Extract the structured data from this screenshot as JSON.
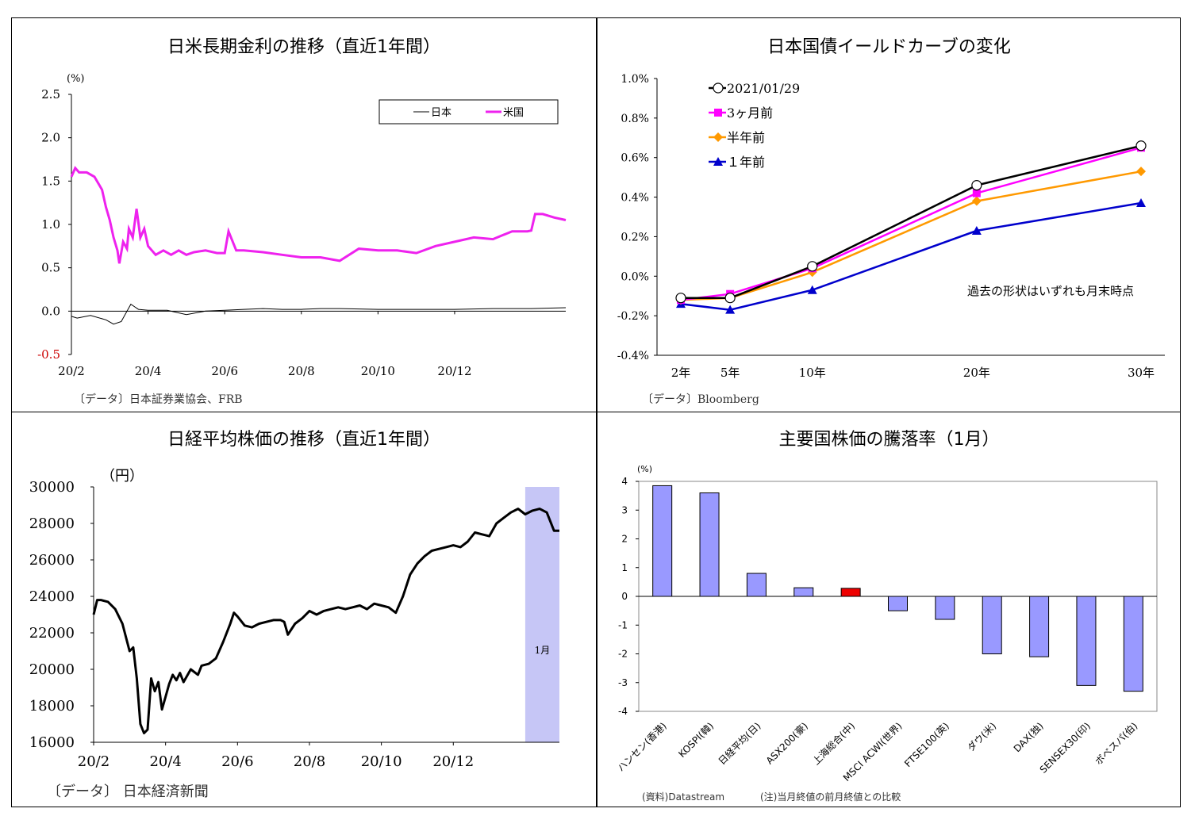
{
  "panels": {
    "p1": {
      "title": "日米長期金利の推移（直近1年間）",
      "source": "〔データ〕日本証券業協会、FRB"
    },
    "p2": {
      "title": "日本国債イールドカーブの変化",
      "source": "〔データ〕Bloomberg"
    },
    "p3": {
      "title": "日経平均株価の推移（直近1年間）",
      "source": "〔データ〕 日本経済新聞"
    },
    "p4": {
      "title": "主要国株価の騰落率（1月）",
      "source1": "(資料)Datastream",
      "source2": "(注)当月終値の前月終値との比較"
    }
  },
  "chart_data": [
    {
      "id": "rates",
      "type": "line",
      "title": "日米長期金利の推移（直近1年間）",
      "ylabel": "(%)",
      "ylim": [
        -0.5,
        2.5
      ],
      "yticks": [
        "2.5",
        "2.0",
        "1.5",
        "1.0",
        "0.5",
        "0.0",
        "-0.5"
      ],
      "xticks": [
        "20/2",
        "20/4",
        "20/6",
        "20/8",
        "20/10",
        "20/12"
      ],
      "legend_position": "top-right",
      "grid": false,
      "series": [
        {
          "name": "日本",
          "color": "#000000",
          "t": [
            0,
            0.15,
            0.5,
            0.9,
            1.1,
            1.3,
            1.4,
            1.55,
            1.65,
            1.75,
            2.0,
            2.5,
            3.0,
            3.5,
            4.0,
            4.5,
            5.0,
            5.5,
            6.0,
            6.5,
            7.0,
            8.0,
            9.0,
            10.0,
            11.0,
            12.0,
            12.9
          ],
          "values": [
            -0.06,
            -0.08,
            -0.05,
            -0.1,
            -0.15,
            -0.12,
            -0.04,
            0.08,
            0.05,
            0.02,
            0.01,
            0.01,
            -0.04,
            0.0,
            0.01,
            0.02,
            0.03,
            0.02,
            0.02,
            0.03,
            0.03,
            0.02,
            0.02,
            0.02,
            0.03,
            0.03,
            0.04
          ]
        },
        {
          "name": "米国",
          "color": "#ee22ee",
          "t": [
            0,
            0.1,
            0.2,
            0.4,
            0.6,
            0.8,
            0.9,
            1.0,
            1.1,
            1.2,
            1.25,
            1.35,
            1.45,
            1.5,
            1.6,
            1.7,
            1.8,
            1.9,
            2.0,
            2.2,
            2.4,
            2.6,
            2.8,
            3.0,
            3.2,
            3.5,
            3.8,
            4.0,
            4.1,
            4.3,
            4.5,
            5.0,
            5.5,
            6.0,
            6.5,
            7.0,
            7.5,
            8.0,
            8.5,
            9.0,
            9.5,
            10.0,
            10.5,
            11.0,
            11.5,
            11.9,
            12.0,
            12.1,
            12.3,
            12.6,
            12.9
          ],
          "values": [
            1.55,
            1.65,
            1.6,
            1.6,
            1.55,
            1.4,
            1.2,
            1.05,
            0.85,
            0.7,
            0.55,
            0.8,
            0.72,
            0.95,
            0.85,
            1.18,
            0.85,
            0.95,
            0.75,
            0.65,
            0.7,
            0.65,
            0.7,
            0.65,
            0.68,
            0.7,
            0.67,
            0.67,
            0.92,
            0.7,
            0.7,
            0.68,
            0.65,
            0.62,
            0.62,
            0.58,
            0.72,
            0.7,
            0.7,
            0.67,
            0.75,
            0.8,
            0.85,
            0.83,
            0.92,
            0.92,
            0.93,
            1.12,
            1.12,
            1.08,
            1.05
          ]
        }
      ]
    },
    {
      "id": "yield_curve",
      "type": "line",
      "title": "日本国債イールドカーブの変化",
      "categories": [
        "2年",
        "5年",
        "10年",
        "20年",
        "30年"
      ],
      "x": [
        2,
        5,
        10,
        20,
        30
      ],
      "ylim": [
        -0.4,
        1.0
      ],
      "yticks": [
        "1.0%",
        "0.8%",
        "0.6%",
        "0.4%",
        "0.2%",
        "0.0%",
        "-0.2%",
        "-0.4%"
      ],
      "annotation": "過去の形状はいずれも月末時点",
      "legend_position": "top-left",
      "grid": false,
      "series": [
        {
          "name": "2021/01/29",
          "color": "#000000",
          "marker": "circle",
          "values": [
            -0.11,
            -0.11,
            0.05,
            0.46,
            0.66
          ]
        },
        {
          "name": "3ヶ月前",
          "color": "#ff00ff",
          "marker": "square",
          "values": [
            -0.12,
            -0.09,
            0.04,
            0.42,
            0.65
          ]
        },
        {
          "name": "半年前",
          "color": "#ff9900",
          "marker": "diamond",
          "values": [
            -0.12,
            -0.11,
            0.02,
            0.38,
            0.53
          ]
        },
        {
          "name": "１年前",
          "color": "#0000cc",
          "marker": "triangle",
          "values": [
            -0.14,
            -0.17,
            -0.07,
            0.23,
            0.37
          ]
        }
      ]
    },
    {
      "id": "nikkei",
      "type": "line",
      "title": "日経平均株価の推移（直近1年間）",
      "ylabel": "（円）",
      "ylim": [
        16000,
        30000
      ],
      "yticks": [
        "30000",
        "28000",
        "26000",
        "24000",
        "22000",
        "20000",
        "18000",
        "16000"
      ],
      "xticks": [
        "20/2",
        "20/4",
        "20/6",
        "20/8",
        "20/10",
        "20/12"
      ],
      "highlight_label": "1月",
      "highlight_range": [
        12.0,
        12.95
      ],
      "grid": false,
      "series": [
        {
          "name": "",
          "color": "#000000",
          "t": [
            0,
            0.1,
            0.2,
            0.4,
            0.6,
            0.8,
            1.0,
            1.1,
            1.2,
            1.3,
            1.4,
            1.5,
            1.6,
            1.7,
            1.8,
            1.9,
            2.0,
            2.1,
            2.2,
            2.3,
            2.4,
            2.5,
            2.7,
            2.9,
            3.0,
            3.2,
            3.4,
            3.6,
            3.8,
            3.9,
            4.0,
            4.2,
            4.4,
            4.6,
            4.8,
            5.0,
            5.2,
            5.3,
            5.4,
            5.6,
            5.8,
            6.0,
            6.2,
            6.4,
            6.6,
            6.8,
            7.0,
            7.2,
            7.4,
            7.6,
            7.8,
            8.0,
            8.2,
            8.4,
            8.6,
            8.8,
            9.0,
            9.2,
            9.4,
            9.6,
            9.8,
            10.0,
            10.2,
            10.4,
            10.6,
            10.8,
            11.0,
            11.2,
            11.4,
            11.6,
            11.8,
            12.0,
            12.2,
            12.4,
            12.6,
            12.8,
            12.95
          ],
          "values": [
            23000,
            23800,
            23800,
            23700,
            23300,
            22500,
            21000,
            21200,
            19500,
            17000,
            16500,
            16700,
            19500,
            18800,
            19300,
            17800,
            18500,
            19200,
            19700,
            19400,
            19800,
            19300,
            20000,
            19700,
            20200,
            20300,
            20600,
            21500,
            22500,
            23100,
            22900,
            22400,
            22300,
            22500,
            22600,
            22700,
            22700,
            22600,
            21900,
            22500,
            22800,
            23200,
            23000,
            23200,
            23300,
            23400,
            23300,
            23400,
            23500,
            23300,
            23600,
            23500,
            23400,
            23100,
            24000,
            25200,
            25800,
            26200,
            26500,
            26600,
            26700,
            26800,
            26700,
            27000,
            27500,
            27400,
            27300,
            28000,
            28300,
            28600,
            28800,
            28500,
            28700,
            28800,
            28600,
            27600,
            27600
          ]
        }
      ]
    },
    {
      "id": "world_stocks",
      "type": "bar",
      "title": "主要国株価の騰落率（1月）",
      "ylabel": "(%)",
      "ylim": [
        -4,
        4
      ],
      "yticks": [
        "4",
        "3",
        "2",
        "1",
        "0",
        "-1",
        "-2",
        "-3",
        "-4"
      ],
      "categories": [
        "ハンセン(香港)",
        "KOSPI(韓)",
        "日経平均(日)",
        "ASX200(豪)",
        "上海総合(中)",
        "MSCI ACWI(世界)",
        "FTSE100(英)",
        "ダウ(米)",
        "DAX(独)",
        "SENSEX30(印)",
        "ボベスパ(伯)"
      ],
      "values": [
        3.85,
        3.6,
        0.8,
        0.3,
        0.28,
        -0.5,
        -0.8,
        -2.0,
        -2.1,
        -3.1,
        -3.3
      ],
      "colors": [
        "#9999ff",
        "#9999ff",
        "#9999ff",
        "#9999ff",
        "#ee0000",
        "#9999ff",
        "#9999ff",
        "#9999ff",
        "#9999ff",
        "#9999ff",
        "#9999ff"
      ],
      "grid": false
    }
  ]
}
